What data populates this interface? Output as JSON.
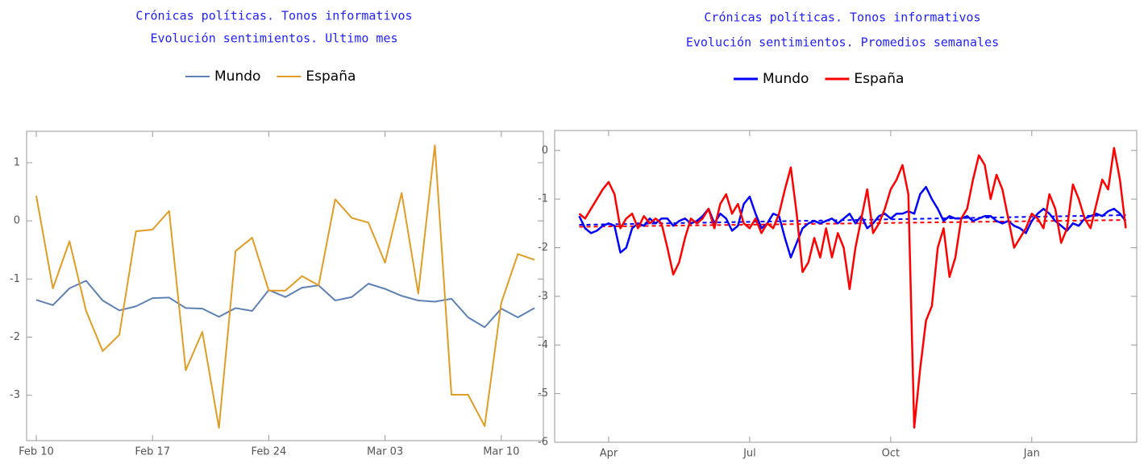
{
  "chart_data": [
    {
      "type": "line",
      "title": "Crónicas políticas. Tonos informativos",
      "subtitle": "Evolución sentimientos. Ultimo mes",
      "categories": [
        "Feb 10",
        null,
        null,
        null,
        null,
        null,
        null,
        "Feb 17",
        null,
        null,
        null,
        null,
        null,
        null,
        "Feb 24",
        null,
        null,
        null,
        null,
        null,
        null,
        "Mar 03",
        null,
        null,
        null,
        null,
        null,
        null,
        "Mar 10",
        null,
        null
      ],
      "series": [
        {
          "name": "Mundo",
          "color": "#5e81b5",
          "values": [
            -1.36,
            -1.45,
            -1.16,
            -1.03,
            -1.37,
            -1.54,
            -1.47,
            -1.33,
            -1.32,
            -1.5,
            -1.51,
            -1.65,
            -1.5,
            -1.55,
            -1.19,
            -1.31,
            -1.15,
            -1.11,
            -1.37,
            -1.31,
            -1.08,
            -1.17,
            -1.29,
            -1.37,
            -1.39,
            -1.34,
            -1.66,
            -1.83,
            -1.51,
            -1.66,
            -1.5
          ]
        },
        {
          "name": "España",
          "color": "#e19c24",
          "values": [
            0.43,
            -1.16,
            -0.35,
            -1.55,
            -2.24,
            -1.96,
            -0.18,
            -0.15,
            0.17,
            -2.57,
            -1.91,
            -3.56,
            -0.52,
            -0.29,
            -1.2,
            -1.2,
            -0.95,
            -1.11,
            0.37,
            0.05,
            -0.03,
            -0.72,
            0.48,
            -1.25,
            1.3,
            -2.99,
            -2.99,
            -3.53,
            -1.41,
            -0.57,
            -0.67
          ]
        }
      ],
      "ylim": [
        -3.78,
        1.54
      ],
      "yticks": [
        -3,
        -2,
        -1,
        0,
        1
      ]
    },
    {
      "type": "line",
      "title": "Crónicas políticas. Tonos informativos",
      "subtitle": "Evolución sentimientos. Promedios semanales",
      "categories": [
        null,
        null,
        null,
        null,
        null,
        "Apr",
        null,
        null,
        null,
        null,
        null,
        null,
        null,
        null,
        null,
        null,
        null,
        null,
        null,
        null,
        null,
        null,
        null,
        null,
        null,
        null,
        null,
        null,
        null,
        "Jul",
        null,
        null,
        null,
        null,
        null,
        null,
        null,
        null,
        null,
        null,
        null,
        null,
        null,
        null,
        null,
        null,
        null,
        null,
        null,
        null,
        null,
        null,
        null,
        "Oct",
        null,
        null,
        null,
        null,
        null,
        null,
        null,
        null,
        null,
        null,
        null,
        null,
        null,
        null,
        null,
        null,
        null,
        null,
        null,
        null,
        null,
        null,
        null,
        "Jan",
        null,
        null,
        null,
        null,
        null,
        null,
        null,
        null,
        null,
        null,
        null,
        null,
        null,
        null,
        null,
        null
      ],
      "series": [
        {
          "name": "Mundo",
          "color": "#0000ff",
          "values": [
            -1.35,
            -1.6,
            -1.7,
            -1.65,
            -1.55,
            -1.5,
            -1.55,
            -2.1,
            -2.0,
            -1.6,
            -1.5,
            -1.55,
            -1.4,
            -1.5,
            -1.4,
            -1.4,
            -1.55,
            -1.45,
            -1.4,
            -1.5,
            -1.45,
            -1.35,
            -1.2,
            -1.5,
            -1.3,
            -1.4,
            -1.65,
            -1.55,
            -1.1,
            -0.95,
            -1.3,
            -1.6,
            -1.5,
            -1.3,
            -1.35,
            -1.8,
            -2.2,
            -1.9,
            -1.6,
            -1.5,
            -1.45,
            -1.5,
            -1.45,
            -1.4,
            -1.5,
            -1.4,
            -1.3,
            -1.5,
            -1.35,
            -1.6,
            -1.5,
            -1.35,
            -1.3,
            -1.4,
            -1.3,
            -1.3,
            -1.25,
            -1.3,
            -0.9,
            -0.75,
            -1.0,
            -1.2,
            -1.45,
            -1.35,
            -1.4,
            -1.4,
            -1.35,
            -1.45,
            -1.4,
            -1.35,
            -1.35,
            -1.45,
            -1.5,
            -1.45,
            -1.55,
            -1.6,
            -1.7,
            -1.45,
            -1.3,
            -1.2,
            -1.3,
            -1.45,
            -1.55,
            -1.65,
            -1.5,
            -1.55,
            -1.4,
            -1.35,
            -1.3,
            -1.35,
            -1.25,
            -1.2,
            -1.3,
            -1.45
          ]
        },
        {
          "name": "España",
          "color": "#ff0000",
          "values": [
            -1.3,
            -1.4,
            -1.2,
            -1.0,
            -0.8,
            -0.65,
            -0.9,
            -1.6,
            -1.4,
            -1.3,
            -1.6,
            -1.35,
            -1.5,
            -1.4,
            -1.5,
            -2.0,
            -2.55,
            -2.3,
            -1.8,
            -1.4,
            -1.5,
            -1.4,
            -1.2,
            -1.6,
            -1.1,
            -0.9,
            -1.3,
            -1.1,
            -1.5,
            -1.6,
            -1.4,
            -1.7,
            -1.5,
            -1.6,
            -1.3,
            -0.8,
            -0.35,
            -1.3,
            -2.5,
            -2.3,
            -1.8,
            -2.2,
            -1.6,
            -2.2,
            -1.7,
            -2.0,
            -2.85,
            -2.0,
            -1.4,
            -0.8,
            -1.7,
            -1.5,
            -1.2,
            -0.8,
            -0.6,
            -0.3,
            -0.9,
            -5.7,
            -4.5,
            -3.5,
            -3.2,
            -2.0,
            -1.6,
            -2.6,
            -2.2,
            -1.4,
            -1.2,
            -0.6,
            -0.1,
            -0.3,
            -1.0,
            -0.5,
            -0.8,
            -1.4,
            -2.0,
            -1.8,
            -1.6,
            -1.3,
            -1.4,
            -1.6,
            -0.9,
            -1.2,
            -1.9,
            -1.6,
            -0.7,
            -1.0,
            -1.4,
            -1.6,
            -1.1,
            -0.6,
            -0.8,
            0.05,
            -0.6,
            -1.6
          ]
        }
      ],
      "trend_lines": [
        {
          "color": "#0000ff",
          "values": [
            -1.53,
            -1.33
          ]
        },
        {
          "color": "#ff0000",
          "values": [
            -1.57,
            -1.43
          ]
        }
      ],
      "ylim": [
        -6,
        0.41
      ],
      "yticks": [
        -6,
        -5,
        -4,
        -3,
        -2,
        -1,
        0
      ]
    }
  ]
}
